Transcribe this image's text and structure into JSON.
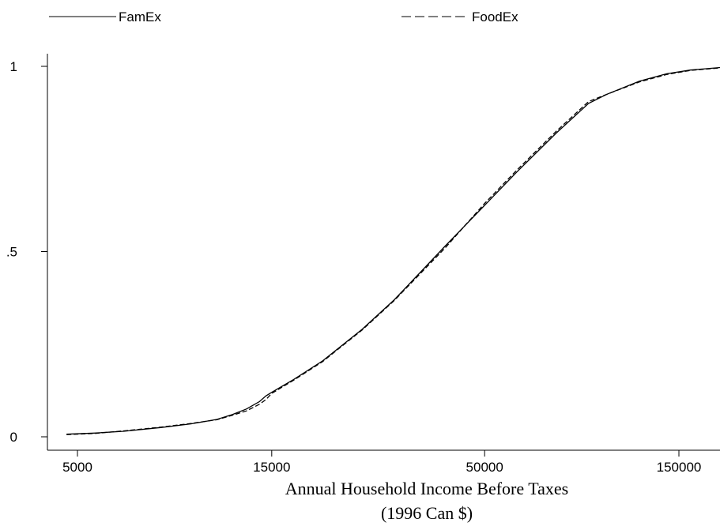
{
  "chart_data": {
    "type": "line",
    "x_scale": "log",
    "xlim": [
      4500,
      200000
    ],
    "ylim": [
      0,
      1
    ],
    "xticks": [
      5000,
      15000,
      50000,
      150000
    ],
    "xtick_labels": [
      "5000",
      "15000",
      "50000",
      "150000"
    ],
    "yticks": [
      0,
      0.5,
      1
    ],
    "ytick_labels": [
      "0",
      ".5",
      "1"
    ],
    "xlabel": "Annual Household Income Before Taxes",
    "xlabel_line2": "(1996 Can $)",
    "ylabel": "",
    "grid": false,
    "legend": "top",
    "series": [
      {
        "name": "FamEx",
        "style": "solid",
        "color": "#000000",
        "points": [
          [
            4700,
            0.007
          ],
          [
            5500,
            0.01
          ],
          [
            6500,
            0.015
          ],
          [
            8000,
            0.025
          ],
          [
            9500,
            0.035
          ],
          [
            11000,
            0.047
          ],
          [
            12000,
            0.06
          ],
          [
            13000,
            0.075
          ],
          [
            14000,
            0.095
          ],
          [
            14500,
            0.11
          ],
          [
            15000,
            0.12
          ],
          [
            17000,
            0.155
          ],
          [
            20000,
            0.205
          ],
          [
            25000,
            0.29
          ],
          [
            30000,
            0.37
          ],
          [
            40000,
            0.515
          ],
          [
            50000,
            0.625
          ],
          [
            60000,
            0.715
          ],
          [
            75000,
            0.82
          ],
          [
            90000,
            0.9
          ],
          [
            100000,
            0.925
          ],
          [
            120000,
            0.96
          ],
          [
            140000,
            0.98
          ],
          [
            160000,
            0.99
          ],
          [
            190000,
            0.997
          ]
        ]
      },
      {
        "name": "FoodEx",
        "style": "dashed",
        "color": "#000000",
        "points": [
          [
            4700,
            0.006
          ],
          [
            5500,
            0.009
          ],
          [
            6500,
            0.016
          ],
          [
            8000,
            0.026
          ],
          [
            9500,
            0.036
          ],
          [
            11000,
            0.046
          ],
          [
            12000,
            0.058
          ],
          [
            13000,
            0.07
          ],
          [
            14000,
            0.088
          ],
          [
            14500,
            0.1
          ],
          [
            15000,
            0.117
          ],
          [
            17000,
            0.153
          ],
          [
            20000,
            0.203
          ],
          [
            25000,
            0.288
          ],
          [
            30000,
            0.368
          ],
          [
            40000,
            0.51
          ],
          [
            50000,
            0.63
          ],
          [
            60000,
            0.72
          ],
          [
            75000,
            0.825
          ],
          [
            90000,
            0.905
          ],
          [
            100000,
            0.925
          ],
          [
            120000,
            0.958
          ],
          [
            140000,
            0.978
          ],
          [
            160000,
            0.989
          ],
          [
            190000,
            0.996
          ]
        ]
      }
    ]
  }
}
